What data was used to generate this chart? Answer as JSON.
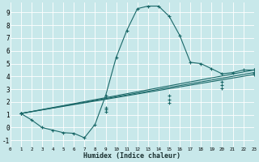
{
  "xlabel": "Humidex (Indice chaleur)",
  "bg_color": "#c8e8ea",
  "line_color": "#1a6868",
  "grid_color": "#ffffff",
  "xlim": [
    0,
    23
  ],
  "ylim": [
    -1.5,
    9.8
  ],
  "xticks": [
    0,
    1,
    2,
    3,
    4,
    5,
    6,
    7,
    8,
    9,
    10,
    11,
    12,
    13,
    14,
    15,
    16,
    17,
    18,
    19,
    20,
    21,
    22,
    23
  ],
  "yticks": [
    -1,
    0,
    1,
    2,
    3,
    4,
    5,
    6,
    7,
    8,
    9
  ],
  "series_wavy": {
    "x": [
      1,
      2,
      3,
      4,
      5,
      6,
      7,
      8,
      9,
      10,
      11,
      12,
      13,
      14,
      15,
      16,
      17,
      18,
      19,
      20,
      21,
      22,
      23
    ],
    "y": [
      1.1,
      0.6,
      0.0,
      -0.2,
      -0.4,
      -0.45,
      -0.8,
      0.25,
      2.5,
      5.5,
      7.6,
      9.3,
      9.5,
      9.5,
      8.7,
      7.2,
      5.1,
      5.0,
      4.6,
      4.2,
      4.3,
      4.5,
      4.5
    ]
  },
  "series_linear": [
    {
      "x": [
        1,
        23
      ],
      "y": [
        1.1,
        4.5
      ],
      "markers_x": [
        1,
        9,
        15,
        20,
        23
      ],
      "markers_y": [
        1.1,
        1.55,
        2.5,
        3.55,
        4.5
      ]
    },
    {
      "x": [
        1,
        23
      ],
      "y": [
        1.1,
        4.3
      ],
      "markers_x": [
        1,
        9,
        15,
        20,
        23
      ],
      "markers_y": [
        1.1,
        1.4,
        2.2,
        3.3,
        4.3
      ]
    },
    {
      "x": [
        1,
        23
      ],
      "y": [
        1.1,
        4.15
      ],
      "markers_x": [
        1,
        9,
        15,
        20,
        23
      ],
      "markers_y": [
        1.1,
        1.25,
        1.95,
        3.1,
        4.15
      ]
    }
  ]
}
